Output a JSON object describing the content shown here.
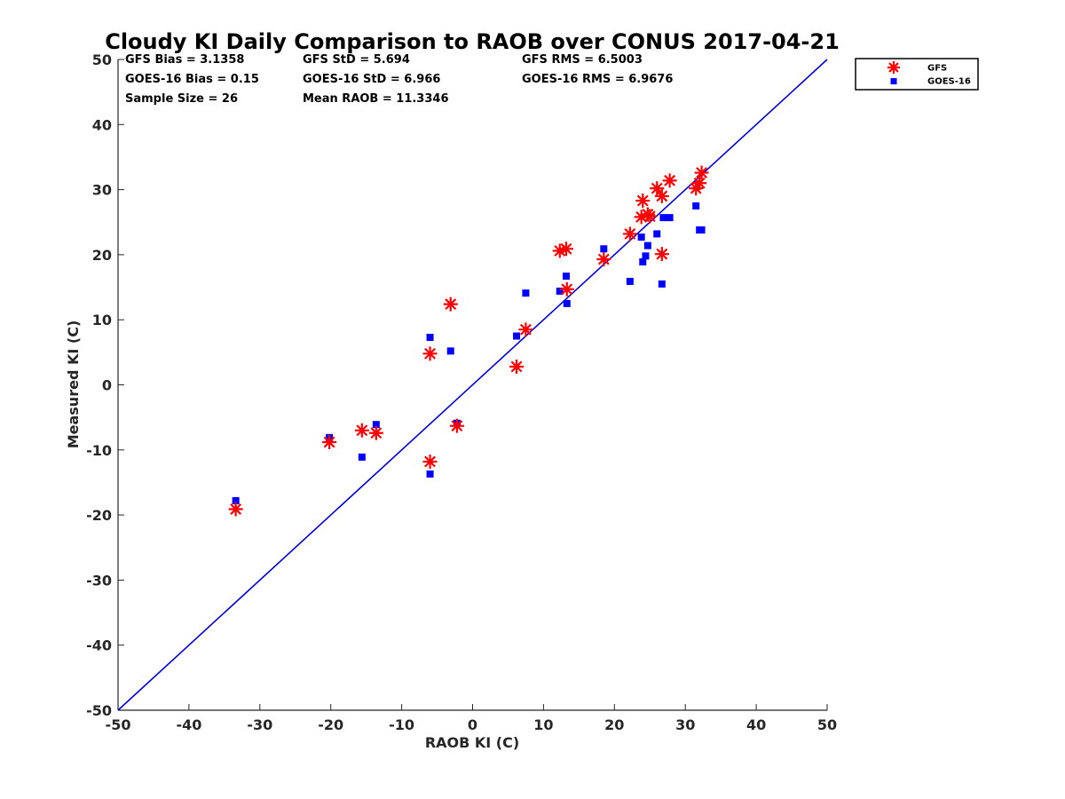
{
  "chart_data": {
    "type": "scatter",
    "title": "Cloudy KI Daily Comparison to RAOB over CONUS 2017-04-21",
    "xlabel": "RAOB KI (C)",
    "ylabel": "Measured KI (C)",
    "xlim": [
      -50,
      50
    ],
    "ylim": [
      -50,
      50
    ],
    "xticks": [
      -50,
      -40,
      -30,
      -20,
      -10,
      0,
      10,
      20,
      30,
      40,
      50
    ],
    "yticks": [
      -50,
      -40,
      -30,
      -20,
      -10,
      0,
      10,
      20,
      30,
      40,
      50
    ],
    "grid": false,
    "legend_position": "top-right",
    "reference_line": {
      "from": [
        -50,
        -50
      ],
      "to": [
        50,
        50
      ],
      "color": "#0000dd"
    },
    "stats": [
      [
        "GFS Bias = 3.1358",
        "GFS StD = 5.694",
        "GFS RMS = 6.5003"
      ],
      [
        "GOES-16 Bias = 0.15",
        "GOES-16 StD = 6.966",
        "GOES-16 RMS = 6.9676"
      ],
      [
        "Sample Size = 26",
        "Mean RAOB = 11.3346",
        ""
      ]
    ],
    "series": [
      {
        "name": "GFS",
        "marker": "asterisk",
        "color": "#ff0000",
        "points": [
          [
            -33.4,
            -19.1
          ],
          [
            -20.2,
            -8.8
          ],
          [
            -15.6,
            -7.0
          ],
          [
            -13.6,
            -7.4
          ],
          [
            -6.0,
            4.8
          ],
          [
            -6.0,
            -11.8
          ],
          [
            -3.1,
            12.4
          ],
          [
            -2.2,
            -6.3
          ],
          [
            6.2,
            2.8
          ],
          [
            7.5,
            8.5
          ],
          [
            12.3,
            20.6
          ],
          [
            13.2,
            20.9
          ],
          [
            13.3,
            14.7
          ],
          [
            18.5,
            19.3
          ],
          [
            22.2,
            23.2
          ],
          [
            23.8,
            25.8
          ],
          [
            24.0,
            28.3
          ],
          [
            24.7,
            26.2
          ],
          [
            26.0,
            30.2
          ],
          [
            26.7,
            29.0
          ],
          [
            26.7,
            20.1
          ],
          [
            27.8,
            31.4
          ],
          [
            31.5,
            30.2
          ],
          [
            32.0,
            31.0
          ],
          [
            32.3,
            32.6
          ],
          [
            25.0,
            25.9
          ]
        ]
      },
      {
        "name": "GOES-16",
        "marker": "square",
        "color": "#0000ff",
        "points": [
          [
            -33.4,
            -17.8
          ],
          [
            -20.2,
            -8.1
          ],
          [
            -15.6,
            -11.1
          ],
          [
            -13.6,
            -6.1
          ],
          [
            -6.0,
            7.3
          ],
          [
            -6.0,
            -13.7
          ],
          [
            -3.1,
            5.2
          ],
          [
            -2.2,
            -5.9
          ],
          [
            6.2,
            7.5
          ],
          [
            7.5,
            14.1
          ],
          [
            12.3,
            14.4
          ],
          [
            13.2,
            16.7
          ],
          [
            13.3,
            12.5
          ],
          [
            18.5,
            20.9
          ],
          [
            22.2,
            15.9
          ],
          [
            23.8,
            22.7
          ],
          [
            24.0,
            18.9
          ],
          [
            24.4,
            19.8
          ],
          [
            24.7,
            21.4
          ],
          [
            26.0,
            23.2
          ],
          [
            26.7,
            15.5
          ],
          [
            26.9,
            25.7
          ],
          [
            27.8,
            25.7
          ],
          [
            31.5,
            27.5
          ],
          [
            32.0,
            23.8
          ],
          [
            32.3,
            23.8
          ]
        ]
      }
    ]
  }
}
